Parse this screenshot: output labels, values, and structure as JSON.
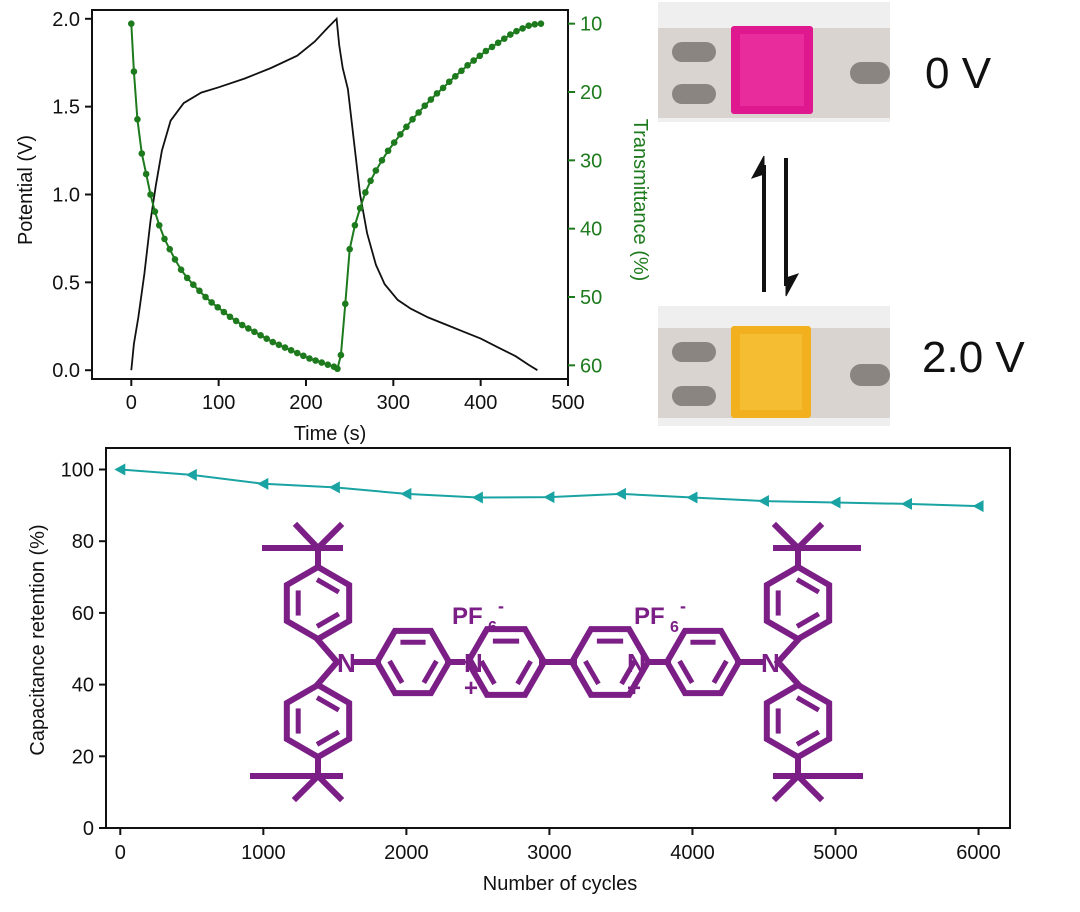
{
  "colors": {
    "potential_line": "#111111",
    "transmittance": "#1d7a1d",
    "retention": "#1aa3a3",
    "molecule": "#7b1f86",
    "film_0V": "#e0188f",
    "film_2V": "#f2b01f",
    "strip": "#d9d4cf"
  },
  "chart_data": [
    {
      "type": "line",
      "id": "potential-transmittance",
      "xlabel": "Time (s)",
      "ylabel": "Potential (V)",
      "y2label": "Transmittance (%)",
      "xlim": [
        -45,
        500
      ],
      "ylim": [
        -0.05,
        2.05
      ],
      "y2lim": [
        62,
        8
      ],
      "xticks": [
        0,
        100,
        200,
        300,
        400,
        500
      ],
      "yticks": [
        0.0,
        0.5,
        1.0,
        1.5,
        2.0
      ],
      "y2ticks": [
        10,
        20,
        30,
        40,
        50,
        60
      ],
      "xtick_labels": [
        "0",
        "100",
        "200",
        "300",
        "400",
        "500"
      ],
      "ytick_labels": [
        "0.0",
        "0.5",
        "1.0",
        "1.5",
        "2.0"
      ],
      "y2tick_labels": [
        "10",
        "20",
        "30",
        "40",
        "50",
        "60"
      ],
      "series": [
        {
          "name": "Potential",
          "axis": "left",
          "x": [
            0,
            3,
            8,
            15,
            22,
            28,
            35,
            45,
            60,
            80,
            100,
            130,
            160,
            190,
            210,
            225,
            235,
            238,
            242,
            248,
            255,
            262,
            270,
            280,
            290,
            305,
            320,
            340,
            360,
            380,
            400,
            420,
            440,
            455,
            465
          ],
          "y": [
            0.0,
            0.15,
            0.3,
            0.55,
            0.85,
            1.05,
            1.25,
            1.42,
            1.52,
            1.58,
            1.61,
            1.66,
            1.72,
            1.79,
            1.87,
            1.95,
            2.0,
            1.85,
            1.72,
            1.6,
            1.3,
            1.0,
            0.78,
            0.6,
            0.49,
            0.4,
            0.35,
            0.3,
            0.26,
            0.22,
            0.18,
            0.13,
            0.08,
            0.03,
            0.0
          ]
        },
        {
          "name": "Transmittance",
          "axis": "right",
          "marker": "circle",
          "x": [
            0,
            3,
            7,
            12,
            17,
            22,
            27,
            32,
            38,
            44,
            50,
            57,
            64,
            71,
            78,
            85,
            92,
            99,
            106,
            113,
            120,
            127,
            134,
            141,
            148,
            155,
            162,
            169,
            176,
            183,
            190,
            197,
            204,
            211,
            218,
            225,
            232,
            236,
            240,
            245,
            250,
            256,
            262,
            268,
            274,
            280,
            287,
            294,
            301,
            308,
            315,
            322,
            329,
            336,
            343,
            350,
            357,
            364,
            371,
            378,
            385,
            392,
            399,
            406,
            413,
            420,
            427,
            434,
            441,
            448,
            455,
            462,
            469
          ],
          "y": [
            10,
            17,
            24,
            29,
            32,
            35,
            37.5,
            39.5,
            41.5,
            43,
            44.5,
            46,
            47.2,
            48.2,
            49.1,
            50.0,
            50.8,
            51.5,
            52.2,
            52.9,
            53.5,
            54.1,
            54.6,
            55.1,
            55.6,
            56.1,
            56.6,
            57.0,
            57.4,
            57.8,
            58.2,
            58.6,
            59.0,
            59.3,
            59.6,
            59.9,
            60.2,
            60.5,
            58.5,
            51.0,
            43.0,
            39.5,
            37.0,
            34.7,
            33.0,
            31.5,
            30.0,
            28.6,
            27.4,
            26.2,
            25.1,
            24.0,
            23.0,
            22.0,
            21.1,
            20.2,
            19.4,
            18.5,
            17.7,
            16.9,
            16.1,
            15.4,
            14.7,
            14.0,
            13.4,
            12.8,
            12.2,
            11.6,
            11.1,
            10.7,
            10.3,
            10.1,
            10.0
          ]
        }
      ]
    },
    {
      "type": "line",
      "id": "capacitance-retention",
      "xlabel": "Number of cycles",
      "ylabel": "Capacitance retention (%)",
      "xlim": [
        -100,
        6220
      ],
      "ylim": [
        0,
        106
      ],
      "xticks": [
        0,
        1000,
        2000,
        3000,
        4000,
        5000,
        6000
      ],
      "yticks": [
        0,
        20,
        40,
        60,
        80,
        100
      ],
      "xtick_labels": [
        "0",
        "1000",
        "2000",
        "3000",
        "4000",
        "5000",
        "6000"
      ],
      "ytick_labels": [
        "0",
        "20",
        "40",
        "60",
        "80",
        "100"
      ],
      "series": [
        {
          "name": "Retention",
          "marker": "triangle-left",
          "x": [
            0,
            500,
            1000,
            1500,
            2000,
            2500,
            3000,
            3500,
            4000,
            4500,
            5000,
            5500,
            6000
          ],
          "y": [
            100,
            98.5,
            96,
            95,
            93.2,
            92.2,
            92.3,
            93.2,
            92.2,
            91.2,
            90.8,
            90.4,
            89.8
          ]
        }
      ]
    }
  ],
  "photos": {
    "top_label": "0 V",
    "bottom_label": "2.0 V"
  },
  "molecule": {
    "atom_N": "N",
    "counterion_base": "PF",
    "counterion_sub": "6",
    "counterion_sup": "-",
    "charge": "+"
  }
}
